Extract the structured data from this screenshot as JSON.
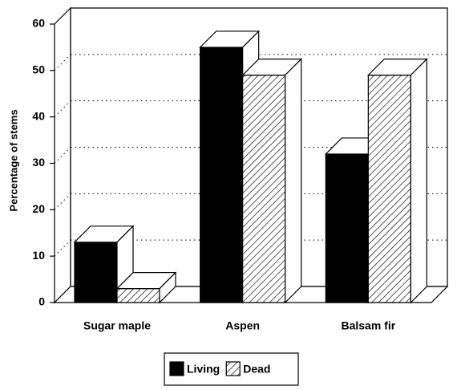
{
  "chart_data": {
    "type": "bar3d",
    "ylabel": "Percentage of stems",
    "categories": [
      "Sugar maple",
      "Aspen",
      "Balsam fir"
    ],
    "series": [
      {
        "name": "Living",
        "color": "#000000",
        "pattern": "solid",
        "values": [
          13,
          55,
          32
        ]
      },
      {
        "name": "Dead",
        "color": "#000000",
        "pattern": "hatch",
        "values": [
          3,
          49,
          49
        ]
      }
    ],
    "ylim": [
      0,
      60
    ],
    "yticks": [
      0,
      10,
      20,
      30,
      40,
      50,
      60
    ],
    "grid": true,
    "legend": "bottom"
  }
}
